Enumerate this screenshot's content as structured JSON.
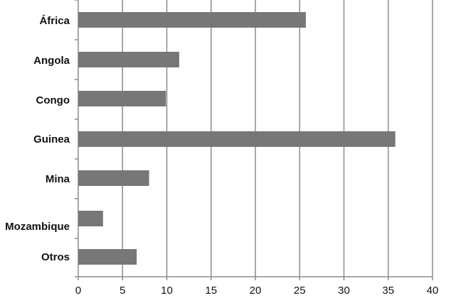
{
  "chart_data": {
    "type": "bar",
    "orientation": "horizontal",
    "categories": [
      "África",
      "Angola",
      "Congo",
      "Guinea",
      "Mina",
      "Mozambique",
      "Otros"
    ],
    "values": [
      25.7,
      11.4,
      9.9,
      35.8,
      8.0,
      2.8,
      6.6
    ],
    "xlim": [
      0,
      40
    ],
    "x_ticks": [
      "0",
      "5",
      "10",
      "15",
      "20",
      "25",
      "30",
      "35",
      "40"
    ],
    "title": "",
    "xlabel": "",
    "ylabel": "",
    "grid": "vertical",
    "legend": "none",
    "colors": {
      "bar": "#777777",
      "grid": "#8c8c8c",
      "axis": "#8c8c8c",
      "text": "#111111"
    }
  }
}
